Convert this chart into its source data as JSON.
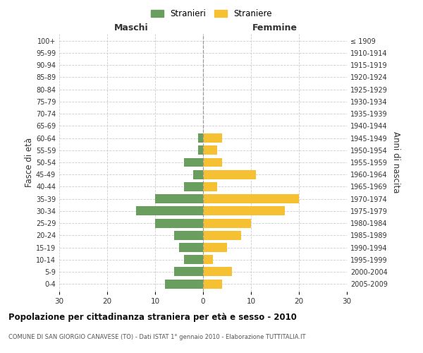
{
  "age_groups": [
    "0-4",
    "5-9",
    "10-14",
    "15-19",
    "20-24",
    "25-29",
    "30-34",
    "35-39",
    "40-44",
    "45-49",
    "50-54",
    "55-59",
    "60-64",
    "65-69",
    "70-74",
    "75-79",
    "80-84",
    "85-89",
    "90-94",
    "95-99",
    "100+"
  ],
  "birth_years": [
    "2005-2009",
    "2000-2004",
    "1995-1999",
    "1990-1994",
    "1985-1989",
    "1980-1984",
    "1975-1979",
    "1970-1974",
    "1965-1969",
    "1960-1964",
    "1955-1959",
    "1950-1954",
    "1945-1949",
    "1940-1944",
    "1935-1939",
    "1930-1934",
    "1925-1929",
    "1920-1924",
    "1915-1919",
    "1910-1914",
    "≤ 1909"
  ],
  "maschi": [
    8,
    6,
    4,
    5,
    6,
    10,
    14,
    10,
    4,
    2,
    4,
    1,
    1,
    0,
    0,
    0,
    0,
    0,
    0,
    0,
    0
  ],
  "femmine": [
    4,
    6,
    2,
    5,
    8,
    10,
    17,
    20,
    3,
    11,
    4,
    3,
    4,
    0,
    0,
    0,
    0,
    0,
    0,
    0,
    0
  ],
  "color_maschi": "#6a9e5e",
  "color_femmine": "#f5c031",
  "bg_color": "#ffffff",
  "grid_color": "#cccccc",
  "title": "Popolazione per cittadinanza straniera per età e sesso - 2010",
  "subtitle": "COMUNE DI SAN GIORGIO CANAVESE (TO) - Dati ISTAT 1° gennaio 2010 - Elaborazione TUTTITALIA.IT",
  "ylabel_left": "Fasce di età",
  "ylabel_right": "Anni di nascita",
  "xlabel_left": "Maschi",
  "xlabel_top_right": "Femmine",
  "legend_stranieri": "Stranieri",
  "legend_straniere": "Straniere",
  "xlim": 30
}
